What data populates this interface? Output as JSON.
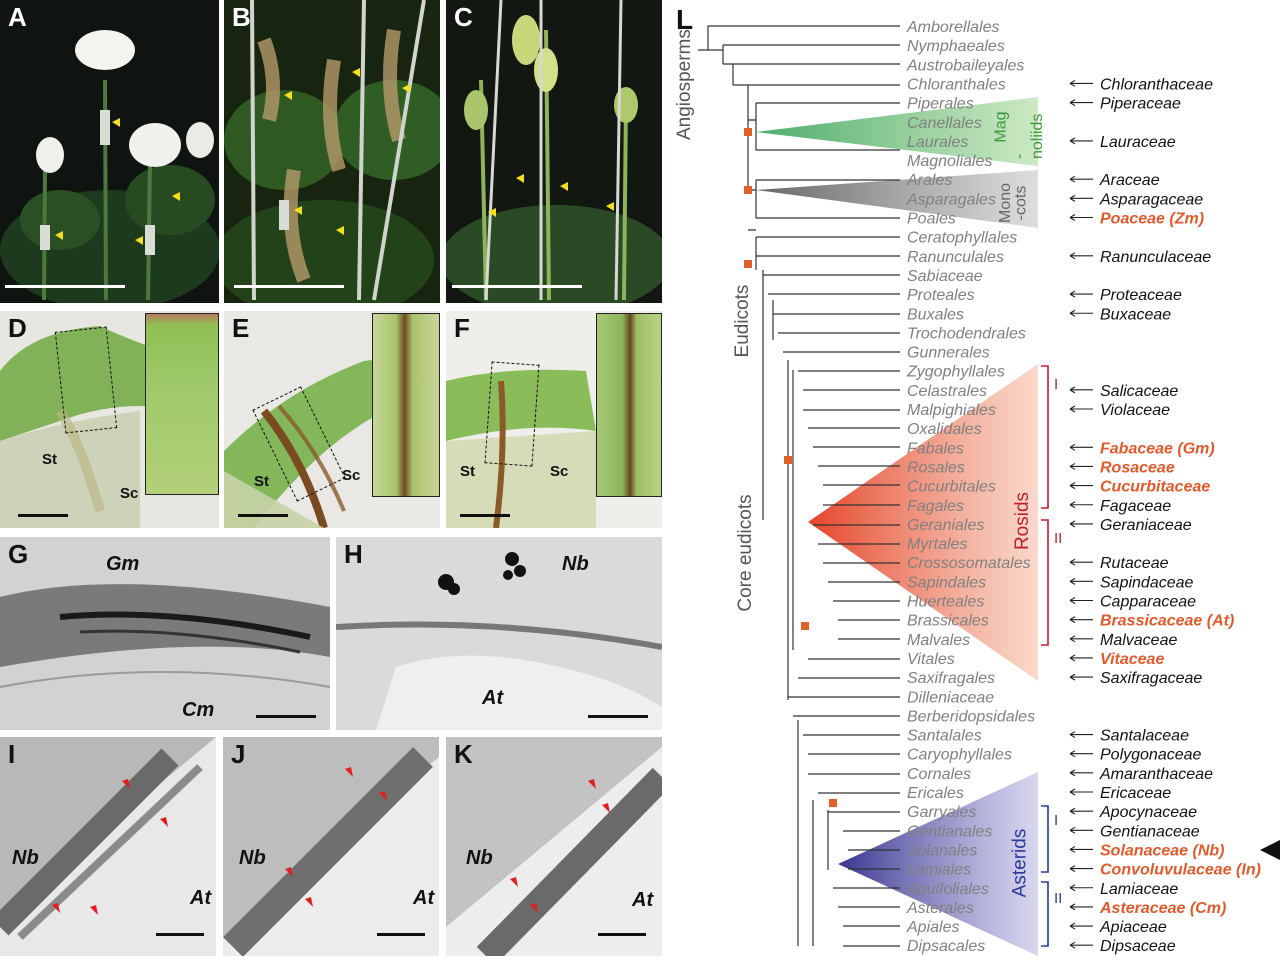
{
  "panels": {
    "A": "A",
    "B": "B",
    "C": "C",
    "D": "D",
    "E": "E",
    "F": "F",
    "G": "G",
    "H": "H",
    "I": "I",
    "J": "J",
    "K": "K",
    "L": "L"
  },
  "section_labels": {
    "st": "St",
    "sc": "Sc"
  },
  "em_labels": {
    "G_top": "Gm",
    "G_bottom": "Cm",
    "H_top": "Nb",
    "H_bottom": "At",
    "I_left": "Nb",
    "I_right": "At",
    "J_left": "Nb",
    "J_right": "At",
    "K_left": "Nb",
    "K_right": "At"
  },
  "colors": {
    "magnoliids": "#6cbf63",
    "monocots": "#8a8a8a",
    "rosids": "#e9573a",
    "asterids": "#4b4aa1",
    "highlight": "#e05a2b",
    "node": "#e0622a",
    "order_text": "#808080",
    "arrow": "#e02020",
    "arrowhead": "#f2e01a"
  },
  "tree": {
    "clades": {
      "angiosperms": "Angiosperms",
      "eudicots": "Eudicots",
      "core_eudicots": "Core eudicots",
      "magnoliids": [
        "Mag",
        "-noliids"
      ],
      "monocots": [
        "Mono",
        "-cots"
      ],
      "rosids": "Rosids",
      "asterids": "Asterids",
      "rosids_I": "I",
      "rosids_II": "II",
      "asterids_I": "I",
      "asterids_II": "II"
    },
    "orders": [
      "Amborellales",
      "Nymphaeales",
      "Austrobaileyales",
      "Chloranthales",
      "Piperales",
      "Canellales",
      "Laurales",
      "Magnoliales",
      "Arales",
      "Asparagales",
      "Poales",
      "Ceratophyllales",
      "Ranunculales",
      "Sabiaceae",
      "Proteales",
      "Buxales",
      "Trochodendrales",
      "Gunnerales",
      "Zygophyllales",
      "Celastrales",
      "Malpighiales",
      "Oxalidales",
      "Fabales",
      "Rosales",
      "Cucurbitales",
      "Fagales",
      "Geraniales",
      "Myrtales",
      "Crossosomatales",
      "Sapindales",
      "Huerteales",
      "Brassicales",
      "Malvales",
      "Vitales",
      "Saxifragales",
      "Dilleniaceae",
      "Berberidopsidales",
      "Santalales",
      "Caryophyllales",
      "Cornales",
      "Ericales",
      "Garryales",
      "Gentianales",
      "Solanales",
      "Lamiales",
      "Aquifoliales",
      "Asterales",
      "Apiales",
      "Dipsacales"
    ],
    "families": [
      {
        "label": "Chloranthaceae",
        "hl": false
      },
      {
        "label": "Piperaceae",
        "hl": false
      },
      {
        "label": "Lauraceae",
        "hl": false
      },
      {
        "label": "Araceae",
        "hl": false
      },
      {
        "label": "Asparagaceae",
        "hl": false
      },
      {
        "label": "Poaceae (Zm)",
        "hl": true
      },
      {
        "label": "Ranunculaceae",
        "hl": false
      },
      {
        "label": "Proteaceae",
        "hl": false
      },
      {
        "label": "Buxaceae",
        "hl": false
      },
      {
        "label": "Salicaceae",
        "hl": false
      },
      {
        "label": "Violaceae",
        "hl": false
      },
      {
        "label": "Fabaceae (Gm)",
        "hl": true
      },
      {
        "label": "Rosaceae",
        "hl": true
      },
      {
        "label": "Cucurbitaceae",
        "hl": true
      },
      {
        "label": "Fagaceae",
        "hl": false
      },
      {
        "label": "Geraniaceae",
        "hl": false
      },
      {
        "label": "Rutaceae",
        "hl": false
      },
      {
        "label": "Sapindaceae",
        "hl": false
      },
      {
        "label": "Capparaceae",
        "hl": false
      },
      {
        "label": "Brassicaceae (At)",
        "hl": true
      },
      {
        "label": "Malvaceae",
        "hl": false
      },
      {
        "label": "Vitaceae",
        "hl": true
      },
      {
        "label": "Saxifragaceae",
        "hl": false
      },
      {
        "label": "Santalaceae",
        "hl": false
      },
      {
        "label": "Polygonaceae",
        "hl": false
      },
      {
        "label": "Amaranthaceae",
        "hl": false
      },
      {
        "label": "Ericaceae",
        "hl": false
      },
      {
        "label": "Apocynaceae",
        "hl": false
      },
      {
        "label": "Gentianaceae",
        "hl": false
      },
      {
        "label": "Solanaceae (Nb)",
        "hl": true
      },
      {
        "label": "Convoluvulaceae (In)",
        "hl": true
      },
      {
        "label": "Lamiaceae",
        "hl": false
      },
      {
        "label": "Asteraceae (Cm)",
        "hl": true
      },
      {
        "label": "Apiaceae",
        "hl": false
      },
      {
        "label": "Dipsaceae",
        "hl": false
      }
    ]
  }
}
